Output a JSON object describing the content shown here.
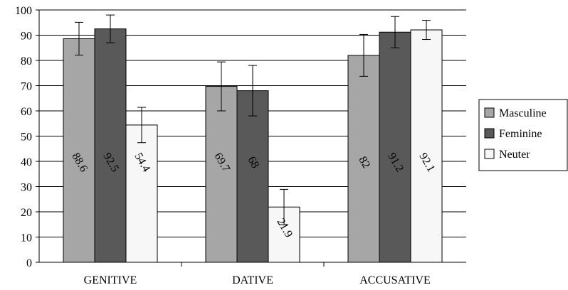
{
  "chart_data": {
    "type": "bar",
    "categories": [
      "GENITIVE",
      "DATIVE",
      "ACCUSATIVE"
    ],
    "series": [
      {
        "name": "Masculine",
        "values": [
          88.6,
          69.7,
          82
        ],
        "error": [
          6.5,
          9.7,
          8.3
        ],
        "color": "#a6a6a6"
      },
      {
        "name": "Feminine",
        "values": [
          92.5,
          68,
          91.2
        ],
        "error": [
          5.5,
          10.0,
          6.2
        ],
        "color": "#595959"
      },
      {
        "name": "Neuter",
        "values": [
          54.4,
          21.9,
          92.1
        ],
        "error": [
          7.0,
          7.0,
          3.8
        ],
        "color": "#f7f7f7"
      }
    ],
    "data_labels": [
      [
        "88.6",
        "69.7",
        "82"
      ],
      [
        "92.5",
        "68",
        "91.2"
      ],
      [
        "54.4",
        "21.9",
        "92.1"
      ]
    ],
    "yticks": [
      "0",
      "10",
      "20",
      "30",
      "40",
      "50",
      "60",
      "70",
      "80",
      "90",
      "100"
    ],
    "ylim": [
      0,
      100
    ],
    "grid": true,
    "legend": "right"
  }
}
